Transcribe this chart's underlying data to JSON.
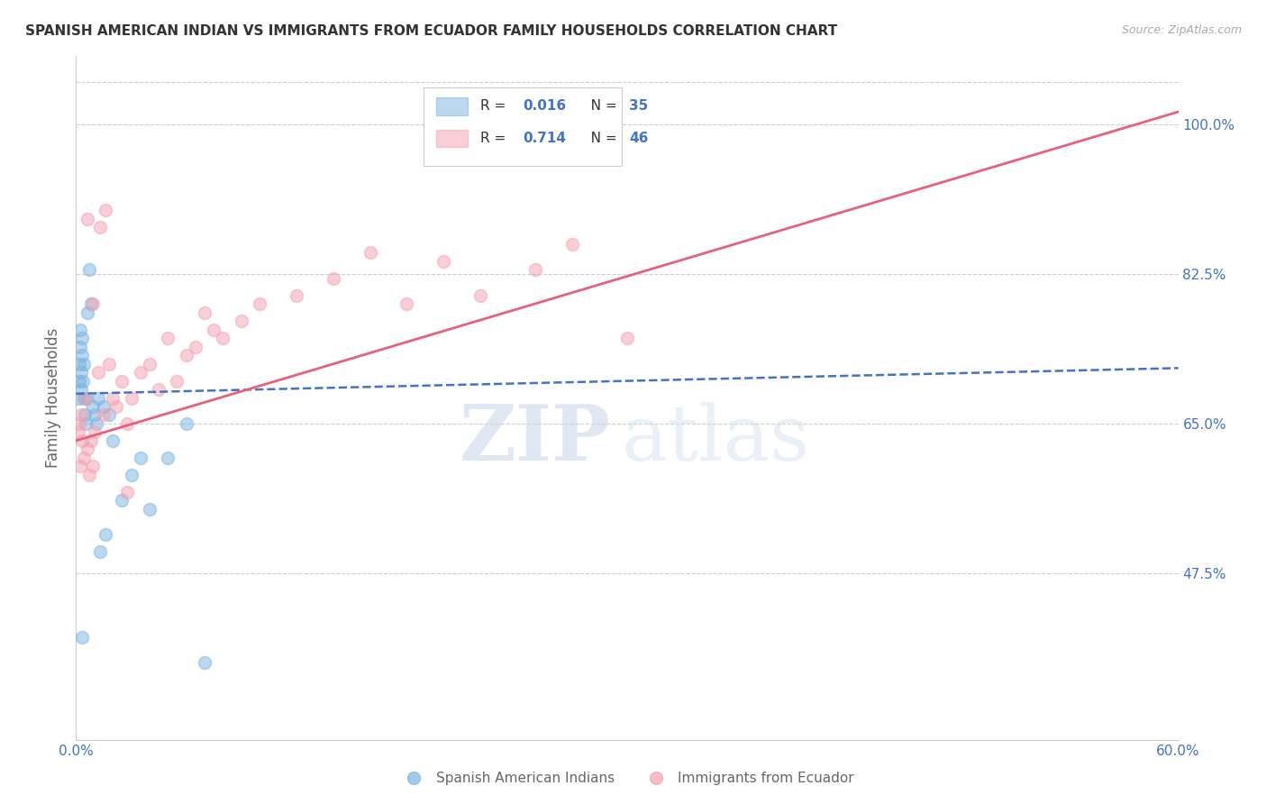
{
  "title": "SPANISH AMERICAN INDIAN VS IMMIGRANTS FROM ECUADOR FAMILY HOUSEHOLDS CORRELATION CHART",
  "source": "Source: ZipAtlas.com",
  "xlim": [
    0.0,
    60.0
  ],
  "ylim": [
    28.0,
    108.0
  ],
  "ylabel": "Family Households",
  "watermark_zip": "ZIP",
  "watermark_atlas": "atlas",
  "ytick_labels": [
    "47.5%",
    "65.0%",
    "82.5%",
    "100.0%"
  ],
  "ytick_vals": [
    47.5,
    65.0,
    82.5,
    100.0
  ],
  "blue_color": "#7ab3e0",
  "pink_color": "#f4a0b0",
  "blue_trend_color": "#4472c4",
  "pink_trend_color": "#e8607a",
  "legend_r1": "R = 0.016",
  "legend_n1": "N = 35",
  "legend_r2": "R = 0.714",
  "legend_n2": "N = 46",
  "blue_scatter_x": [
    0.15,
    0.18,
    0.2,
    0.22,
    0.25,
    0.28,
    0.3,
    0.32,
    0.35,
    0.38,
    0.4,
    0.42,
    0.45,
    0.5,
    0.55,
    0.6,
    0.7,
    0.8,
    0.9,
    1.0,
    1.1,
    1.2,
    1.5,
    1.8,
    2.0,
    2.5,
    3.0,
    3.5,
    4.0,
    5.0,
    6.0,
    7.0,
    1.3,
    1.6,
    0.35
  ],
  "blue_scatter_y": [
    68.0,
    72.0,
    70.0,
    74.0,
    76.0,
    71.0,
    69.0,
    73.0,
    75.0,
    70.0,
    72.0,
    68.0,
    66.0,
    65.0,
    68.0,
    78.0,
    83.0,
    79.0,
    67.0,
    66.0,
    65.0,
    68.0,
    67.0,
    66.0,
    63.0,
    56.0,
    59.0,
    61.0,
    55.0,
    61.0,
    65.0,
    37.0,
    50.0,
    52.0,
    40.0
  ],
  "pink_scatter_x": [
    0.15,
    0.2,
    0.25,
    0.3,
    0.35,
    0.4,
    0.5,
    0.6,
    0.7,
    0.8,
    0.9,
    1.0,
    1.2,
    1.5,
    1.8,
    2.0,
    2.2,
    2.5,
    2.8,
    3.0,
    3.5,
    4.0,
    4.5,
    5.0,
    5.5,
    6.0,
    6.5,
    7.0,
    7.5,
    8.0,
    9.0,
    10.0,
    12.0,
    14.0,
    16.0,
    18.0,
    20.0,
    22.0,
    25.0,
    27.0,
    1.3,
    1.6,
    2.8,
    30.0,
    0.6,
    0.9
  ],
  "pink_scatter_y": [
    64.0,
    65.0,
    60.0,
    66.0,
    63.0,
    61.0,
    68.0,
    62.0,
    59.0,
    63.0,
    60.0,
    64.0,
    71.0,
    66.0,
    72.0,
    68.0,
    67.0,
    70.0,
    65.0,
    68.0,
    71.0,
    72.0,
    69.0,
    75.0,
    70.0,
    73.0,
    74.0,
    78.0,
    76.0,
    75.0,
    77.0,
    79.0,
    80.0,
    82.0,
    85.0,
    79.0,
    84.0,
    80.0,
    83.0,
    86.0,
    88.0,
    90.0,
    57.0,
    75.0,
    89.0,
    79.0
  ],
  "blue_trend_x": [
    0.0,
    60.0
  ],
  "blue_trend_y": [
    68.5,
    71.5
  ],
  "pink_trend_x": [
    0.0,
    60.0
  ],
  "pink_trend_y": [
    63.0,
    101.5
  ],
  "scatter_size": 100,
  "scatter_alpha": 0.5,
  "background_color": "#ffffff",
  "grid_color": "#cccccc",
  "axis_color": "#cccccc",
  "title_color": "#333333",
  "ylabel_color": "#666666",
  "tick_color": "#4472c4",
  "source_color": "#aaaaaa"
}
